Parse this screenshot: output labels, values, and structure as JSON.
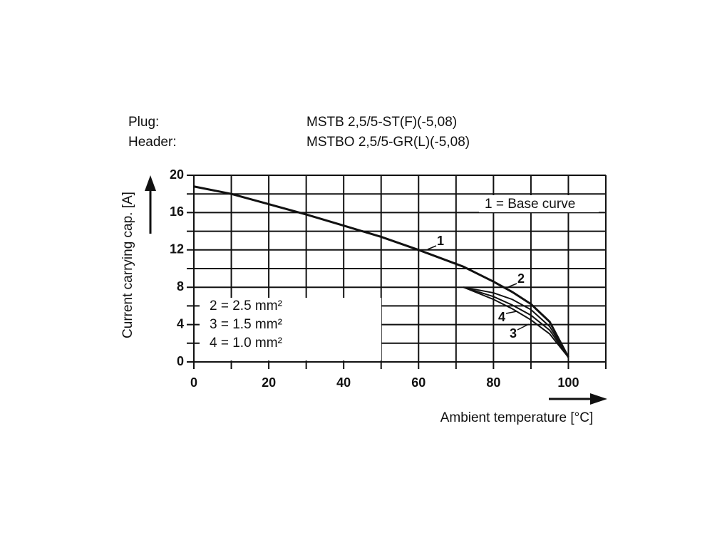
{
  "chart_data": {
    "type": "line",
    "plug_label": "Plug:",
    "plug_value": "MSTB 2,5/5-ST(F)(-5,08)",
    "header_label": "Header:",
    "header_value": "MSTBO 2,5/5-GR(L)(-5,08)",
    "x_label": "Ambient temperature [°C]",
    "y_label": "Current carrying cap. [A]",
    "legend_entries": [
      "1 = Base curve",
      "2 = 2.5 mm²",
      "3 = 1.5 mm²",
      "4 = 1.0 mm²"
    ],
    "x": [
      0,
      10,
      20,
      30,
      40,
      50,
      60,
      70,
      72,
      80,
      85,
      90,
      95,
      100
    ],
    "series": [
      {
        "name": "1",
        "color": "#111111",
        "values": [
          18.8,
          18.0,
          16.9,
          15.8,
          14.6,
          13.4,
          12.0,
          10.5,
          10.2,
          8.6,
          7.5,
          6.2,
          4.3,
          0.5
        ]
      },
      {
        "name": "2",
        "color": "#111111",
        "values": [
          null,
          null,
          null,
          null,
          null,
          null,
          null,
          null,
          8.0,
          7.4,
          6.7,
          5.6,
          3.8,
          0.5
        ]
      },
      {
        "name": "3",
        "color": "#111111",
        "values": [
          null,
          null,
          null,
          null,
          null,
          null,
          null,
          null,
          8.0,
          7.0,
          6.1,
          5.0,
          3.4,
          0.5
        ]
      },
      {
        "name": "4",
        "color": "#111111",
        "values": [
          null,
          null,
          null,
          null,
          null,
          null,
          null,
          null,
          8.0,
          6.7,
          5.7,
          4.5,
          3.0,
          0.5
        ]
      }
    ],
    "xlim": [
      0,
      110
    ],
    "ylim": [
      0,
      20
    ],
    "xticks": [
      0,
      20,
      40,
      60,
      80,
      100
    ],
    "yticks": [
      0,
      4,
      8,
      12,
      16,
      20
    ],
    "xgrid": [
      0,
      10,
      20,
      30,
      40,
      50,
      60,
      70,
      80,
      90,
      100,
      110
    ],
    "ygrid": [
      0,
      2,
      4,
      6,
      8,
      10,
      12,
      14,
      16,
      18,
      20
    ],
    "grid": true
  }
}
